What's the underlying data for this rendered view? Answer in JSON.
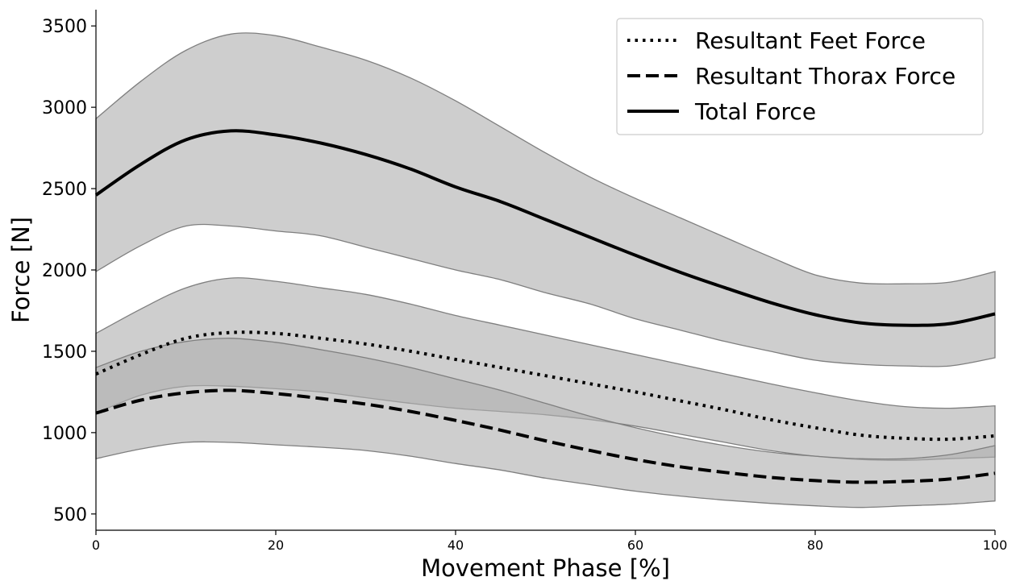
{
  "chart_data": {
    "type": "line",
    "xlabel": "Movement Phase [%]",
    "ylabel": "Force [N]",
    "xlim": [
      0,
      100
    ],
    "ylim": [
      400,
      3600
    ],
    "x_ticks": [
      0,
      20,
      40,
      60,
      80,
      100
    ],
    "y_ticks": [
      500,
      1000,
      1500,
      2000,
      2500,
      3000,
      3500
    ],
    "grid": false,
    "legend_position": "top-right",
    "x": [
      0,
      5,
      10,
      15,
      20,
      25,
      30,
      35,
      40,
      45,
      50,
      55,
      60,
      65,
      70,
      75,
      80,
      85,
      90,
      95,
      100
    ],
    "series": [
      {
        "name": "Resultant Feet Force",
        "style": "dotted",
        "values": [
          1360,
          1480,
          1580,
          1615,
          1610,
          1580,
          1545,
          1500,
          1450,
          1400,
          1350,
          1300,
          1250,
          1195,
          1140,
          1080,
          1030,
          985,
          965,
          960,
          980
        ],
        "band_upper": [
          1610,
          1760,
          1890,
          1950,
          1930,
          1890,
          1850,
          1790,
          1720,
          1660,
          1600,
          1540,
          1480,
          1420,
          1360,
          1300,
          1245,
          1195,
          1160,
          1150,
          1165
        ],
        "band_lower": [
          1120,
          1230,
          1285,
          1285,
          1270,
          1250,
          1215,
          1180,
          1150,
          1130,
          1110,
          1080,
          1040,
          990,
          940,
          890,
          855,
          835,
          830,
          840,
          850
        ]
      },
      {
        "name": "Resultant Thorax Force",
        "style": "dashed",
        "values": [
          1120,
          1200,
          1245,
          1260,
          1240,
          1210,
          1175,
          1130,
          1075,
          1015,
          950,
          890,
          835,
          790,
          755,
          725,
          705,
          695,
          700,
          715,
          750
        ],
        "band_upper": [
          1400,
          1500,
          1560,
          1580,
          1555,
          1510,
          1460,
          1400,
          1330,
          1260,
          1180,
          1100,
          1030,
          970,
          920,
          880,
          855,
          840,
          840,
          865,
          920
        ],
        "band_lower": [
          840,
          900,
          940,
          940,
          925,
          910,
          890,
          855,
          810,
          770,
          720,
          680,
          640,
          610,
          585,
          565,
          550,
          540,
          550,
          560,
          580
        ]
      },
      {
        "name": "Total Force",
        "style": "solid",
        "values": [
          2460,
          2650,
          2800,
          2855,
          2830,
          2780,
          2710,
          2620,
          2510,
          2420,
          2310,
          2200,
          2090,
          1985,
          1890,
          1800,
          1725,
          1675,
          1660,
          1670,
          1730
        ],
        "band_upper": [
          2930,
          3160,
          3350,
          3450,
          3440,
          3370,
          3290,
          3180,
          3040,
          2880,
          2720,
          2570,
          2440,
          2320,
          2200,
          2080,
          1970,
          1920,
          1915,
          1925,
          1990
        ],
        "band_lower": [
          1990,
          2150,
          2270,
          2270,
          2240,
          2210,
          2140,
          2070,
          2000,
          1940,
          1860,
          1790,
          1700,
          1630,
          1560,
          1500,
          1445,
          1420,
          1410,
          1410,
          1460
        ]
      }
    ]
  },
  "colors": {
    "band_fill": "#b0b0b0",
    "band_edge": "#7f7f7f",
    "line": "#000000",
    "axis": "#000000"
  }
}
